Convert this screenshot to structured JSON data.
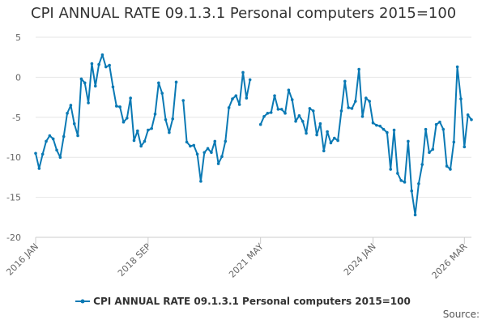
{
  "header": {
    "title": "CPI ANNUAL RATE 09.1.3.1 Personal computers 2015=100"
  },
  "legend": {
    "label": "CPI ANNUAL RATE 09.1.3.1 Personal computers 2015=100"
  },
  "footer": {
    "source": "Source:"
  },
  "colors": {
    "series": "#0a79b4",
    "grid": "#e6e6e6",
    "axis": "#666666"
  },
  "chart_data": {
    "type": "line",
    "title": "CPI ANNUAL RATE 09.1.3.1 Personal computers 2015=100",
    "xlabel": "",
    "ylabel": "",
    "ylim": [
      -20,
      5
    ],
    "yticks": [
      5,
      0,
      -5,
      -10,
      -15,
      -20
    ],
    "xticks": [
      {
        "label": "2016 JAN",
        "index": 0
      },
      {
        "label": "2018 SEP",
        "index": 32
      },
      {
        "label": "2021 MAY",
        "index": 64
      },
      {
        "label": "2024 JAN",
        "index": 96
      },
      {
        "label": "2026 MAR",
        "index": 122
      }
    ],
    "start": "2016 JAN",
    "end": "2026 MAR",
    "series": [
      {
        "name": "CPI ANNUAL RATE 09.1.3.1 Personal computers 2015=100",
        "values": [
          -9.5,
          -11.4,
          -9.6,
          -8.0,
          -7.3,
          -7.7,
          -9.1,
          -10.0,
          -7.4,
          -4.5,
          -3.5,
          -5.8,
          -7.3,
          -0.2,
          -0.7,
          -3.2,
          1.7,
          -1.1,
          1.6,
          2.8,
          1.3,
          1.5,
          -1.2,
          -3.6,
          -3.7,
          -5.6,
          -5.1,
          -2.6,
          -7.9,
          -6.7,
          -8.6,
          -8.0,
          -6.6,
          -6.4,
          -4.6,
          -0.7,
          -2.0,
          -5.3,
          -6.9,
          -5.2,
          -0.6,
          null,
          -2.9,
          -8.1,
          -8.6,
          -8.5,
          -9.6,
          -13.0,
          -9.4,
          -8.9,
          -9.4,
          -8.0,
          -10.8,
          -9.9,
          -8.0,
          -3.8,
          -2.7,
          -2.3,
          -3.4,
          0.6,
          -2.6,
          -0.3,
          null,
          null,
          -5.9,
          -4.9,
          -4.5,
          -4.4,
          -2.3,
          -4.0,
          -4.0,
          -4.5,
          -1.6,
          -2.8,
          -5.5,
          -4.8,
          -5.5,
          -7.0,
          -3.9,
          -4.2,
          -7.2,
          -5.8,
          -9.2,
          -6.8,
          -8.2,
          -7.6,
          -7.9,
          -4.2,
          -0.5,
          -3.8,
          -3.9,
          -3.0,
          1.0,
          -4.9,
          -2.6,
          -3.0,
          -5.7,
          -6.0,
          -6.1,
          -6.5,
          -6.9,
          -11.5,
          -6.6,
          -12.0,
          -12.9,
          -13.1,
          -8.0,
          -14.2,
          -17.2,
          -13.3,
          -10.9,
          -6.5,
          -9.4,
          -9.0,
          -5.9,
          -5.6,
          -6.5,
          -11.1,
          -11.5,
          -8.1,
          1.3,
          -2.7,
          -8.7,
          -4.7,
          -5.3
        ]
      }
    ]
  }
}
